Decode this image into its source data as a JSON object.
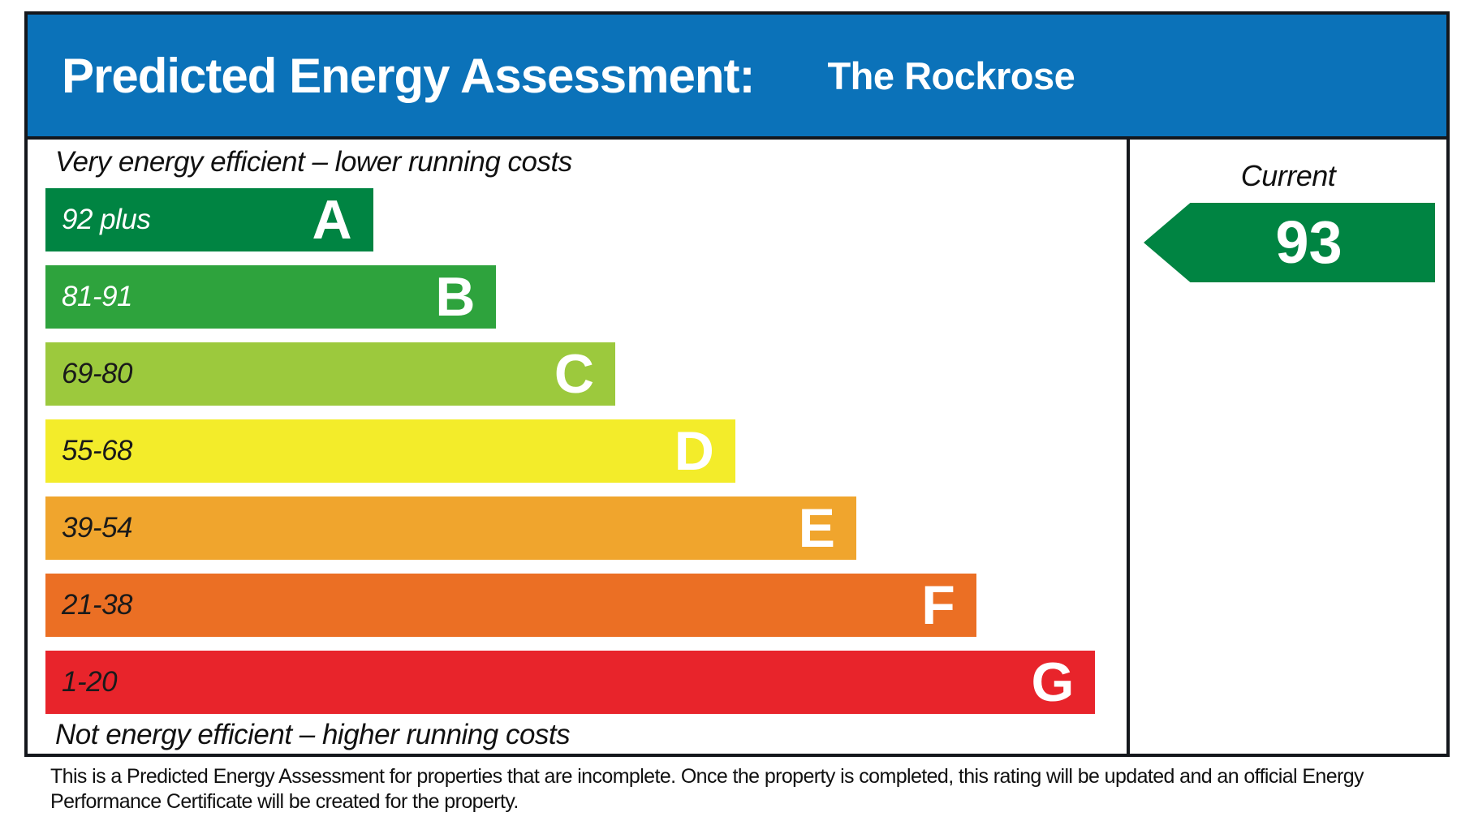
{
  "header": {
    "title": "Predicted Energy Assessment:",
    "property_name": "The Rockrose"
  },
  "chart": {
    "top_caption": "Very energy efficient – lower running costs",
    "bottom_caption": "Not energy efficient – higher running costs",
    "bands": [
      {
        "range": "92 plus",
        "letter": "A",
        "color": "#008442",
        "label_color": "#FFFFFF",
        "length_pct": 30.3
      },
      {
        "range": "81-91",
        "letter": "B",
        "color": "#2EA33D",
        "label_color": "#FFFFFF",
        "length_pct": 41.7
      },
      {
        "range": "69-80",
        "letter": "C",
        "color": "#9CC93D",
        "label_color": "#1A1A1A",
        "length_pct": 52.7
      },
      {
        "range": "55-68",
        "letter": "D",
        "color": "#F3EC2A",
        "label_color": "#1A1A1A",
        "length_pct": 63.8
      },
      {
        "range": "39-54",
        "letter": "E",
        "color": "#F0A52D",
        "label_color": "#1A1A1A",
        "length_pct": 75.0
      },
      {
        "range": "21-38",
        "letter": "F",
        "color": "#EB6F24",
        "label_color": "#1A1A1A",
        "length_pct": 86.1
      },
      {
        "range": "1-20",
        "letter": "G",
        "color": "#E8242B",
        "label_color": "#1A1A1A",
        "length_pct": 97.1
      }
    ]
  },
  "current_panel": {
    "heading": "Current",
    "value": "93",
    "arrow_color": "#008442"
  },
  "footer_note": "This is a Predicted Energy Assessment for properties that are incomplete. Once the property is completed, this rating will be updated and an official Energy Performance Certificate will be created for the property.",
  "colors": {
    "header_bg": "#0B72B9",
    "frame_border": "#14171C",
    "band_letter": "#FFFFFF"
  },
  "chart_data": {
    "type": "bar",
    "title": "Predicted Energy Assessment: The Rockrose",
    "categories": [
      "A",
      "B",
      "C",
      "D",
      "E",
      "F",
      "G"
    ],
    "band_ranges": [
      "92 plus",
      "81-91",
      "69-80",
      "55-68",
      "39-54",
      "21-38",
      "1-20"
    ],
    "series": [
      {
        "name": "band length (% of chart width)",
        "values": [
          30.3,
          41.7,
          52.7,
          63.8,
          75.0,
          86.1,
          97.1
        ]
      }
    ],
    "band_colors": [
      "#008442",
      "#2EA33D",
      "#9CC93D",
      "#F3EC2A",
      "#F0A52D",
      "#EB6F24",
      "#E8242B"
    ],
    "current_rating": 93,
    "current_band": "A",
    "xlabel": "",
    "ylabel": "",
    "annotations": [
      "Very energy efficient – lower running costs",
      "Not energy efficient – higher running costs",
      "Current"
    ],
    "legend_position": "none",
    "grid": false
  }
}
